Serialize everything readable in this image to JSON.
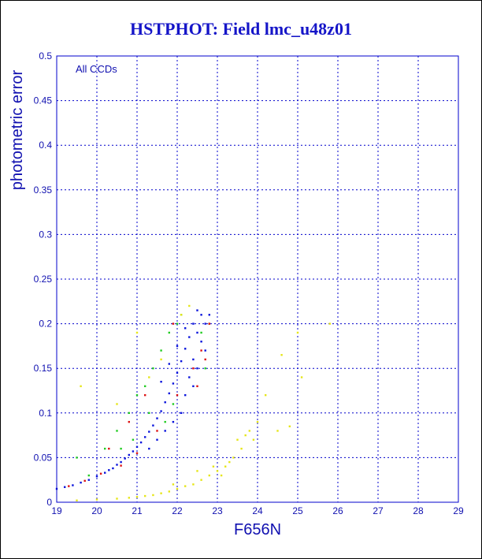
{
  "chart_data": {
    "type": "scatter",
    "title": "HSTPHOT: Field lmc_u48z01",
    "xlabel": "F656N",
    "ylabel": "photometric error",
    "annotation": "All CCDs",
    "xlim": [
      19,
      29
    ],
    "ylim": [
      0,
      0.5
    ],
    "x_ticks": [
      "19",
      "20",
      "21",
      "22",
      "23",
      "24",
      "25",
      "26",
      "27",
      "28",
      "29"
    ],
    "y_ticks": [
      "0",
      "0.05",
      "0.1",
      "0.15",
      "0.2",
      "0.25",
      "0.3",
      "0.35",
      "0.4",
      "0.45",
      "0.5"
    ],
    "grid": true,
    "colors": {
      "axis": "#0000cc",
      "text": "#1010b0",
      "blue": "#0a14dc",
      "green": "#22cc22",
      "red": "#dd1111",
      "yellow": "#e6e619",
      "grid": "#0000cc"
    },
    "series": [
      {
        "color_key": "blue",
        "points": [
          [
            19.0,
            0.015
          ],
          [
            19.2,
            0.017
          ],
          [
            19.4,
            0.019
          ],
          [
            19.6,
            0.022
          ],
          [
            19.8,
            0.025
          ],
          [
            20.0,
            0.029
          ],
          [
            20.2,
            0.033
          ],
          [
            20.4,
            0.038
          ],
          [
            20.6,
            0.045
          ],
          [
            20.8,
            0.053
          ],
          [
            21.0,
            0.062
          ],
          [
            21.2,
            0.073
          ],
          [
            21.4,
            0.086
          ],
          [
            21.6,
            0.102
          ],
          [
            21.8,
            0.122
          ],
          [
            22.0,
            0.145
          ],
          [
            22.2,
            0.172
          ],
          [
            22.4,
            0.2
          ],
          [
            22.5,
            0.215
          ],
          [
            22.3,
            0.185
          ],
          [
            22.1,
            0.158
          ],
          [
            21.9,
            0.133
          ],
          [
            21.7,
            0.112
          ],
          [
            21.5,
            0.094
          ],
          [
            21.3,
            0.079
          ],
          [
            21.1,
            0.067
          ],
          [
            20.9,
            0.057
          ],
          [
            20.7,
            0.049
          ],
          [
            20.5,
            0.042
          ],
          [
            20.3,
            0.036
          ],
          [
            22.6,
            0.21
          ],
          [
            22.7,
            0.2
          ],
          [
            22.4,
            0.16
          ],
          [
            22.3,
            0.14
          ],
          [
            22.2,
            0.12
          ],
          [
            22.1,
            0.1
          ],
          [
            22.6,
            0.18
          ],
          [
            22.5,
            0.15
          ],
          [
            22.4,
            0.13
          ],
          [
            22.7,
            0.17
          ],
          [
            22.2,
            0.195
          ],
          [
            22.0,
            0.175
          ],
          [
            21.8,
            0.155
          ],
          [
            21.6,
            0.135
          ],
          [
            21.9,
            0.09
          ],
          [
            21.7,
            0.08
          ],
          [
            21.5,
            0.07
          ],
          [
            21.3,
            0.06
          ],
          [
            22.5,
            0.19
          ],
          [
            22.8,
            0.21
          ]
        ]
      },
      {
        "color_key": "green",
        "points": [
          [
            19.5,
            0.05
          ],
          [
            20.2,
            0.06
          ],
          [
            20.5,
            0.08
          ],
          [
            20.8,
            0.1
          ],
          [
            21.0,
            0.12
          ],
          [
            21.2,
            0.13
          ],
          [
            21.4,
            0.15
          ],
          [
            21.6,
            0.17
          ],
          [
            21.8,
            0.19
          ],
          [
            22.0,
            0.2
          ],
          [
            22.6,
            0.19
          ],
          [
            22.8,
            0.2
          ],
          [
            21.7,
            0.09
          ],
          [
            21.9,
            0.11
          ],
          [
            20.6,
            0.06
          ],
          [
            20.9,
            0.07
          ],
          [
            22.7,
            0.15
          ],
          [
            19.8,
            0.03
          ],
          [
            21.3,
            0.1
          ],
          [
            22.1,
            0.21
          ]
        ]
      },
      {
        "color_key": "red",
        "points": [
          [
            19.3,
            0.018
          ],
          [
            19.7,
            0.024
          ],
          [
            20.1,
            0.032
          ],
          [
            20.6,
            0.041
          ],
          [
            21.0,
            0.055
          ],
          [
            21.5,
            0.08
          ],
          [
            22.0,
            0.12
          ],
          [
            22.4,
            0.15
          ],
          [
            22.6,
            0.17
          ],
          [
            22.8,
            0.2
          ],
          [
            22.7,
            0.16
          ],
          [
            22.5,
            0.13
          ],
          [
            21.9,
            0.2
          ],
          [
            21.2,
            0.12
          ],
          [
            20.8,
            0.09
          ],
          [
            20.3,
            0.06
          ]
        ]
      },
      {
        "color_key": "yellow",
        "points": [
          [
            19.5,
            0.002
          ],
          [
            20.0,
            0.003
          ],
          [
            20.5,
            0.004
          ],
          [
            20.8,
            0.005
          ],
          [
            21.0,
            0.006
          ],
          [
            21.2,
            0.007
          ],
          [
            21.4,
            0.008
          ],
          [
            21.6,
            0.01
          ],
          [
            21.8,
            0.012
          ],
          [
            22.0,
            0.015
          ],
          [
            22.2,
            0.018
          ],
          [
            22.4,
            0.02
          ],
          [
            22.6,
            0.025
          ],
          [
            22.8,
            0.03
          ],
          [
            23.0,
            0.035
          ],
          [
            23.2,
            0.04
          ],
          [
            23.4,
            0.05
          ],
          [
            23.6,
            0.06
          ],
          [
            23.8,
            0.08
          ],
          [
            24.0,
            0.09
          ],
          [
            22.9,
            0.04
          ],
          [
            23.3,
            0.045
          ],
          [
            23.5,
            0.07
          ],
          [
            23.7,
            0.075
          ],
          [
            24.6,
            0.165
          ],
          [
            25.1,
            0.14
          ],
          [
            25.8,
            0.2
          ],
          [
            25.0,
            0.19
          ],
          [
            24.5,
            0.08
          ],
          [
            24.8,
            0.085
          ],
          [
            22.1,
            0.21
          ],
          [
            21.0,
            0.19
          ],
          [
            20.5,
            0.11
          ],
          [
            19.6,
            0.13
          ],
          [
            24.2,
            0.12
          ],
          [
            23.9,
            0.07
          ],
          [
            21.6,
            0.16
          ],
          [
            22.3,
            0.22
          ],
          [
            21.3,
            0.14
          ],
          [
            22.5,
            0.035
          ],
          [
            23.1,
            0.03
          ],
          [
            21.9,
            0.02
          ]
        ]
      }
    ]
  }
}
